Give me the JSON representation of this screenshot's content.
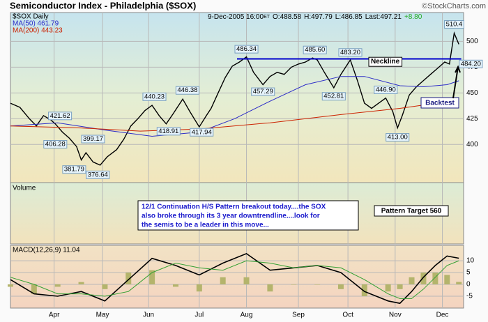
{
  "chart_data": [
    {
      "type": "line",
      "title": "Semiconductor Index - Philadelphia ($SOX)",
      "source": "©StockCharts.com",
      "header": {
        "date": "9-Dec-2005 16:00",
        "tz": "ET",
        "open": "O:488.58",
        "high": "H:497.79",
        "low": "L:486.85",
        "last": "Last:497.21",
        "change": "+8.80"
      },
      "xlim": [
        0,
        192
      ],
      "ylim": [
        363,
        528
      ],
      "yticks": [
        400,
        425,
        450,
        475,
        500
      ],
      "grid": true,
      "series": [
        {
          "name": "$SOX Daily",
          "color": "#000000",
          "x": [
            0,
            4,
            8,
            11,
            14,
            17,
            19,
            22,
            25,
            28,
            30,
            32,
            35,
            38,
            41,
            45,
            48,
            51,
            54,
            57,
            60,
            63,
            66,
            69,
            73,
            76,
            80,
            83,
            85,
            88,
            91,
            94,
            97,
            100,
            103,
            107,
            110,
            113,
            116,
            119,
            122,
            125,
            128,
            130,
            133,
            137,
            140,
            144,
            147,
            150,
            153,
            156,
            159,
            162,
            164,
            166,
            169,
            172,
            175,
            178,
            181,
            184,
            186,
            188,
            190
          ],
          "values": [
            440,
            436,
            425,
            418,
            428,
            424,
            420,
            412,
            406,
            398,
            385,
            392,
            383,
            380,
            388,
            395,
            405,
            418,
            425,
            433,
            438,
            428,
            420,
            430,
            444,
            432,
            417,
            428,
            435,
            450,
            465,
            476,
            480,
            485,
            470,
            458,
            466,
            470,
            468,
            475,
            478,
            480,
            484,
            482,
            470,
            455,
            468,
            482,
            462,
            440,
            435,
            440,
            445,
            432,
            416,
            428,
            448,
            456,
            462,
            468,
            474,
            480,
            478,
            508,
            497.21
          ]
        },
        {
          "name": "MA(50) 461.79",
          "color": "#2c2cc8",
          "x": [
            0,
            20,
            40,
            60,
            80,
            95,
            110,
            125,
            140,
            150,
            165,
            175,
            185,
            190
          ],
          "values": [
            418,
            421,
            414,
            408,
            412,
            425,
            442,
            458,
            466,
            466,
            457,
            456,
            458,
            461.79
          ]
        },
        {
          "name": "MA(200) 443.23",
          "color": "#cc2200",
          "x": [
            0,
            30,
            55,
            80,
            110,
            140,
            165,
            190
          ],
          "values": [
            418,
            416,
            413,
            415,
            421,
            429,
            435,
            443.23
          ]
        }
      ],
      "annotations": [
        {
          "value": 421.62,
          "label": "421.62",
          "x": 21
        },
        {
          "value": 406.28,
          "label": "406.28",
          "x": 19
        },
        {
          "value": 399.17,
          "label": "399.17",
          "x": 35
        },
        {
          "value": 381.79,
          "label": "381.79",
          "x": 27
        },
        {
          "value": 376.64,
          "label": "376.64",
          "x": 37
        },
        {
          "value": 440.23,
          "label": "440.23",
          "x": 61
        },
        {
          "value": 446.38,
          "label": "446.38",
          "x": 75
        },
        {
          "value": 418.91,
          "label": "418.91",
          "x": 67
        },
        {
          "value": 417.94,
          "label": "417.94",
          "x": 81
        },
        {
          "value": 486.34,
          "label": "486.34",
          "x": 100
        },
        {
          "value": 457.29,
          "label": "457.29",
          "x": 107
        },
        {
          "value": 485.6,
          "label": "485.60",
          "x": 129
        },
        {
          "value": 452.81,
          "label": "452.81",
          "x": 137
        },
        {
          "value": 483.2,
          "label": "483.20",
          "x": 144
        },
        {
          "value": 446.9,
          "label": "446.90",
          "x": 159
        },
        {
          "value": 413,
          "label": "413.00",
          "x": 164
        },
        {
          "value": 510.4,
          "label": "510.4",
          "x": 188
        },
        {
          "value": 484.2,
          "label": "484.20",
          "x": 189
        }
      ],
      "neckline": {
        "label": "Neckline",
        "value": 483,
        "x": [
          96,
          191
        ]
      },
      "backtest": "Backtest",
      "volume_title": "Volume",
      "note": [
        "12/1  Continuation H/S Pattern breakout today....the SOX",
        "also broke through its 3 year downtrendline....look for",
        "the semis to be a leader in this move..."
      ],
      "target": "Pattern Target 560"
    },
    {
      "type": "macd",
      "title": "MACD(12,26,9) 11.04",
      "xlim": [
        0,
        192
      ],
      "ylim": [
        -10,
        16.5
      ],
      "yticks": [
        10,
        5,
        0,
        -5
      ],
      "xticks": [
        {
          "value": 18.5,
          "label": "Apr"
        },
        {
          "value": 39,
          "label": "May"
        },
        {
          "value": 58.5,
          "label": "Jun"
        },
        {
          "value": 80,
          "label": "Jul"
        },
        {
          "value": 100,
          "label": "Aug"
        },
        {
          "value": 122,
          "label": "Sep"
        },
        {
          "value": 143,
          "label": "Oct"
        },
        {
          "value": 163,
          "label": "Nov"
        },
        {
          "value": 183,
          "label": "Dec"
        }
      ],
      "x": [
        0,
        10,
        20,
        30,
        40,
        50,
        60,
        70,
        80,
        90,
        100,
        110,
        120,
        130,
        140,
        150,
        160,
        165,
        170,
        175,
        180,
        185,
        190
      ],
      "series": [
        {
          "color": "#000000",
          "values": [
            2,
            -4,
            -5,
            -3,
            -7,
            2,
            11,
            8,
            4,
            9,
            13,
            6,
            7,
            8,
            5,
            -3,
            -7,
            -8,
            -3,
            3,
            8,
            12,
            11.04
          ]
        },
        {
          "color": "#33a033",
          "values": [
            3,
            0,
            -4,
            -4,
            -5,
            -3,
            5,
            9,
            7,
            6,
            10,
            9,
            7,
            8,
            7,
            2,
            -4,
            -6,
            -6,
            -2,
            3,
            8,
            10
          ]
        }
      ],
      "histogram": {
        "color": "#b4b46c",
        "values": [
          -1,
          -4,
          -1,
          1,
          -2,
          5,
          6,
          -1,
          -3,
          3,
          3,
          -3,
          0,
          0,
          -2,
          -5,
          -3,
          -2,
          3,
          5,
          5,
          4,
          1.04
        ]
      }
    }
  ]
}
